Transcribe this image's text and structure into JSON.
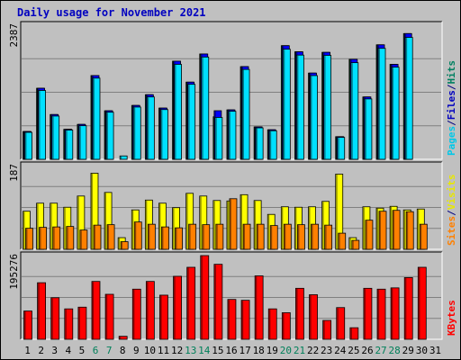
{
  "chart_data": {
    "type": "bar",
    "title": "Daily usage for November 2021",
    "days": [
      "1",
      "2",
      "3",
      "4",
      "5",
      "6",
      "7",
      "8",
      "9",
      "10",
      "11",
      "12",
      "13",
      "14",
      "15",
      "16",
      "17",
      "18",
      "19",
      "20",
      "21",
      "22",
      "23",
      "24",
      "25",
      "26",
      "27",
      "28",
      "29",
      "30",
      "31"
    ],
    "weekend_days": [
      "6",
      "7",
      "13",
      "14",
      "20",
      "21",
      "27",
      "28"
    ],
    "panels": [
      {
        "id": "hits",
        "max_label": "2387",
        "ymax": 2387,
        "axis_words": [
          {
            "text": "Pages",
            "color": "#00c8e8"
          },
          {
            "text": "/",
            "color": "#000080"
          },
          {
            "text": "Files",
            "color": "#0000c0"
          },
          {
            "text": "/",
            "color": "#000080"
          },
          {
            "text": "Hits",
            "color": "#008060"
          }
        ],
        "series": [
          {
            "name": "Hits",
            "color": "#008040",
            "values": [
              495,
              1265,
              797,
              534,
              622,
              1491,
              864,
              0,
              959,
              1150,
              912,
              1747,
              1374,
              1875,
              757,
              880,
              1650,
              577,
              526,
              2023,
              1914,
              1535,
              1904,
              403,
              1780,
              1110,
              2038,
              1690,
              2238,
              0,
              0
            ]
          },
          {
            "name": "Files",
            "color": "#0000ff",
            "values": [
              495,
              1265,
              797,
              534,
              622,
              1491,
              864,
              0,
              959,
              1150,
              912,
              1747,
              1374,
              1875,
              865,
              880,
              1650,
              577,
              526,
              2023,
              1914,
              1535,
              1904,
              403,
              1780,
              1110,
              2038,
              1690,
              2238,
              0,
              0
            ]
          },
          {
            "name": "Pages",
            "color": "#00e0ff",
            "values": [
              480,
              1225,
              770,
              520,
              598,
              1445,
              838,
              60,
              930,
              1110,
              885,
              1690,
              1335,
              1820,
              745,
              855,
              1600,
              560,
              508,
              1960,
              1855,
              1490,
              1850,
              390,
              1720,
              1075,
              1975,
              1640,
              2170,
              0,
              0
            ]
          }
        ]
      },
      {
        "id": "visits",
        "max_label": "187",
        "ymax": 187,
        "axis_words": [
          {
            "text": "Sites",
            "color": "#ff8000"
          },
          {
            "text": "/",
            "color": "#000080"
          },
          {
            "text": "Visits",
            "color": "#e8e800"
          }
        ],
        "series": [
          {
            "name": "Visits",
            "color": "#ffff00",
            "values": [
              85,
              103,
              103,
              94,
              119,
              170,
              127,
              26,
              88,
              110,
              103,
              93,
              125,
              119,
              109,
              108,
              122,
              109,
              78,
              95,
              94,
              95,
              107,
              168,
              26,
              95,
              92,
              96,
              88,
              90,
              0
            ]
          },
          {
            "name": "Sites",
            "color": "#ff8000",
            "values": [
              47,
              49,
              50,
              51,
              43,
              54,
              55,
              17,
              61,
              56,
              50,
              48,
              56,
              55,
              56,
              113,
              56,
              56,
              53,
              56,
              55,
              56,
              54,
              36,
              20,
              65,
              85,
              87,
              84,
              56,
              0
            ]
          }
        ]
      },
      {
        "id": "kbytes",
        "max_label": "195276",
        "ymax": 195276,
        "axis_words": [
          {
            "text": "KBytes",
            "color": "#ff0000"
          }
        ],
        "series": [
          {
            "name": "KBytes",
            "color": "#ff0000",
            "values": [
              66000,
              132000,
              97000,
              71000,
              75000,
              135000,
              105000,
              7000,
              117000,
              135000,
              103000,
              147000,
              168000,
              195276,
              175000,
              93000,
              91000,
              148000,
              71000,
              62000,
              119000,
              104000,
              44000,
              74000,
              27000,
              119000,
              117000,
              120000,
              144000,
              168000,
              0
            ]
          }
        ]
      }
    ]
  }
}
